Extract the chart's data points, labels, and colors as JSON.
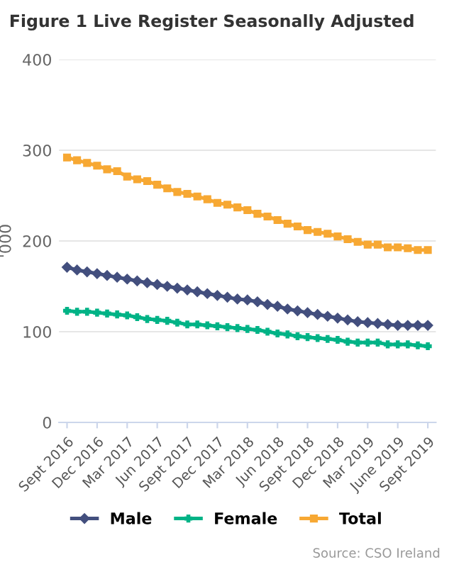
{
  "chart_data": {
    "type": "line",
    "title": "Figure 1 Live Register Seasonally Adjusted",
    "ylabel": "'000",
    "categories": [
      "Sept 2016",
      null,
      null,
      "Dec 2016",
      null,
      null,
      "Mar 2017",
      null,
      null,
      "Jun 2017",
      null,
      null,
      "Sept 2017",
      null,
      null,
      "Dec 2017",
      null,
      null,
      "Mar 2018",
      null,
      null,
      "Jun 2018",
      null,
      null,
      "Sept 2018",
      null,
      null,
      "Dec 2018",
      null,
      null,
      "Mar 2019",
      null,
      null,
      "June 2019",
      null,
      null,
      "Sept 2019"
    ],
    "series": [
      {
        "name": "Male",
        "color": "#434f7e",
        "marker": "diamond",
        "values": [
          171,
          168,
          166,
          164,
          162,
          160,
          158,
          156,
          154,
          152,
          150,
          148,
          146,
          144,
          142,
          140,
          138,
          136,
          135,
          133,
          130,
          128,
          125,
          123,
          121,
          119,
          117,
          115,
          113,
          111,
          110,
          109,
          108,
          107,
          107,
          107,
          107
        ]
      },
      {
        "name": "Female",
        "color": "#00b386",
        "marker": "cross",
        "values": [
          123,
          122,
          122,
          121,
          120,
          119,
          118,
          116,
          114,
          113,
          112,
          110,
          108,
          108,
          107,
          106,
          105,
          104,
          103,
          102,
          100,
          98,
          97,
          95,
          94,
          93,
          92,
          91,
          89,
          88,
          88,
          88,
          86,
          86,
          86,
          85,
          84
        ]
      },
      {
        "name": "Total",
        "color": "#f7a833",
        "marker": "square",
        "values": [
          292,
          289,
          286,
          283,
          279,
          277,
          271,
          268,
          266,
          262,
          258,
          254,
          252,
          249,
          246,
          242,
          240,
          237,
          234,
          230,
          227,
          223,
          219,
          216,
          212,
          210,
          208,
          205,
          202,
          199,
          196,
          196,
          193,
          193,
          192,
          190,
          190
        ]
      }
    ],
    "ylim": [
      0,
      400
    ],
    "yticks": [
      0,
      100,
      200,
      300,
      400
    ],
    "grid": "y",
    "legend": "bottom",
    "annotations": [
      "Source: CSO Ireland"
    ]
  }
}
